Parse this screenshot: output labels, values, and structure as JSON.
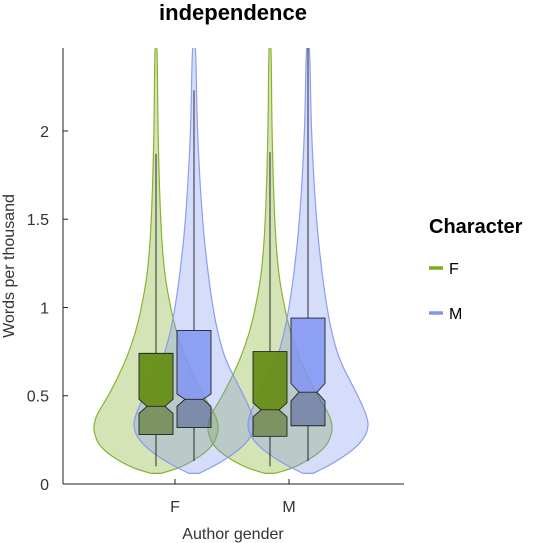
{
  "chart_data": {
    "type": "violin",
    "title": "independence",
    "xlabel": "Author gender",
    "ylabel": "Words per thousand",
    "categories": [
      "F",
      "M"
    ],
    "ylim": [
      0,
      2.47
    ],
    "yticks": [
      0,
      0.5,
      1,
      1.5,
      2
    ],
    "ytick_labels": [
      "0",
      "0.5",
      "1",
      "1.5",
      "2"
    ],
    "legend": {
      "title": "Character",
      "placement": "right",
      "entries": [
        {
          "label": "F",
          "color": "#7cac1c"
        },
        {
          "label": "M",
          "color": "#8195f2"
        }
      ]
    },
    "series": [
      {
        "name": "F",
        "color": "#7cac1c",
        "box": [
          {
            "category": "F",
            "q1": 0.28,
            "median": 0.44,
            "q3": 0.74,
            "notch_low": 0.4,
            "notch_high": 0.48,
            "whisker_low": 0.1,
            "whisker_high": 1.87
          },
          {
            "category": "M",
            "q1": 0.27,
            "median": 0.42,
            "q3": 0.75,
            "notch_low": 0.38,
            "notch_high": 0.46,
            "whisker_low": 0.1,
            "whisker_high": 1.88
          }
        ],
        "density_levels": [
          0.06,
          0.1,
          0.2,
          0.3,
          0.38,
          0.45,
          0.55,
          0.7,
          0.85,
          1.0,
          1.2,
          1.5,
          2.0,
          2.47
        ],
        "density_widths": [
          0.08,
          0.45,
          0.88,
          1.0,
          0.96,
          0.84,
          0.68,
          0.48,
          0.33,
          0.23,
          0.13,
          0.07,
          0.03,
          0.02
        ]
      },
      {
        "name": "M",
        "color": "#8195f2",
        "box": [
          {
            "category": "F",
            "q1": 0.32,
            "median": 0.48,
            "q3": 0.87,
            "notch_low": 0.44,
            "notch_high": 0.51,
            "whisker_low": 0.13,
            "whisker_high": 2.23
          },
          {
            "category": "M",
            "q1": 0.33,
            "median": 0.52,
            "q3": 0.94,
            "notch_low": 0.47,
            "notch_high": 0.57,
            "whisker_low": 0.13,
            "whisker_high": 2.47
          }
        ],
        "density_levels": [
          0.06,
          0.12,
          0.22,
          0.32,
          0.42,
          0.55,
          0.7,
          0.85,
          1.0,
          1.2,
          1.5,
          2.0,
          2.47
        ],
        "density_widths": [
          0.08,
          0.42,
          0.82,
          0.98,
          0.9,
          0.72,
          0.5,
          0.38,
          0.3,
          0.22,
          0.13,
          0.05,
          0.03
        ]
      }
    ]
  }
}
